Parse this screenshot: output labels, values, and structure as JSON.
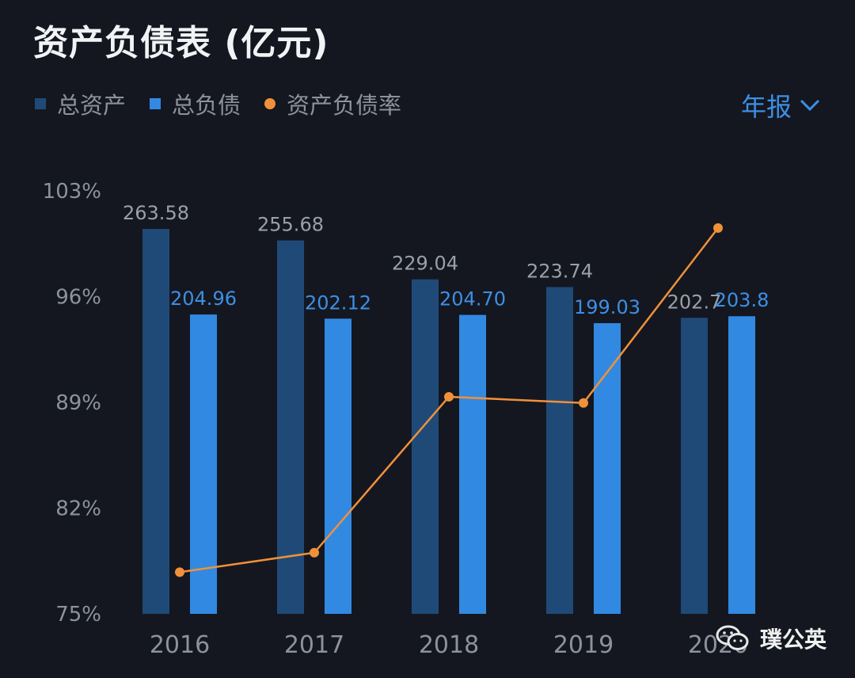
{
  "header": {
    "title": "资产负债表 (亿元)"
  },
  "legend": [
    {
      "label": "总资产",
      "color": "#1f4a78",
      "shape": "square"
    },
    {
      "label": "总负债",
      "color": "#3289e2",
      "shape": "square"
    },
    {
      "label": "资产负债率",
      "color": "#f0913a",
      "shape": "dot"
    }
  ],
  "period_selector": {
    "label": "年报"
  },
  "watermark": {
    "label": "璞公英"
  },
  "colors": {
    "background": "#141720",
    "assets_bar": "#1f4a78",
    "liabilities_bar": "#3289e2",
    "ratio_line": "#f0913a",
    "axis_text": "#8d929b",
    "asset_label": "#9aa0a8",
    "liability_label": "#3d8fe4"
  },
  "chart_data": {
    "type": "bar",
    "title": "资产负债表 (亿元)",
    "categories": [
      "2016",
      "2017",
      "2018",
      "2019",
      "2020"
    ],
    "series": [
      {
        "name": "总资产",
        "values": [
          263.58,
          255.68,
          229.04,
          223.74,
          202.7
        ],
        "labels": [
          "263.58",
          "255.68",
          "229.04",
          "223.74",
          "202.7"
        ]
      },
      {
        "name": "总负债",
        "values": [
          204.96,
          202.12,
          204.7,
          199.03,
          203.8
        ],
        "labels": [
          "204.96",
          "202.12",
          "204.70",
          "199.03",
          "203.8"
        ]
      },
      {
        "name": "资产负债率",
        "type": "line",
        "axis": "left-percent",
        "values": [
          77.76,
          79.05,
          89.37,
          88.96,
          100.54
        ]
      }
    ],
    "y_axis": {
      "ticks": [
        "103%",
        "96%",
        "89%",
        "82%",
        "75%"
      ],
      "tick_values": [
        103,
        96,
        89,
        82,
        75
      ],
      "range": [
        75,
        103
      ]
    },
    "bar_value_range": [
      0,
      263.58
    ],
    "legend_position": "top-left"
  }
}
